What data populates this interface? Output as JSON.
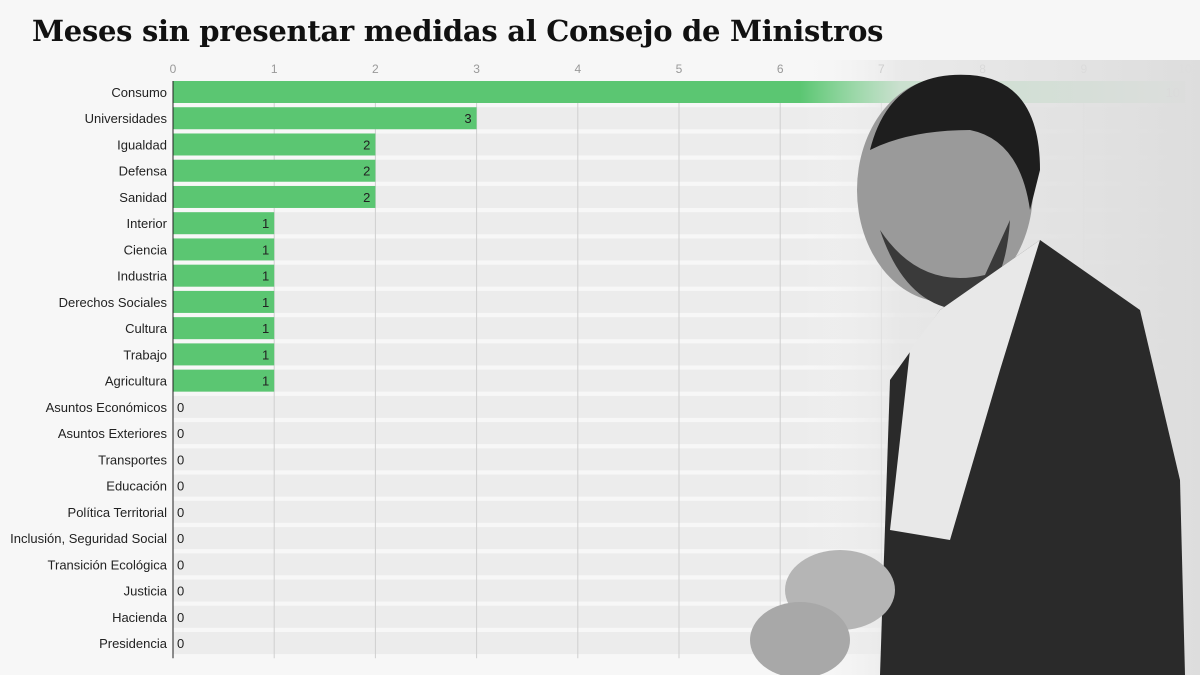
{
  "chart_data": {
    "type": "bar",
    "orientation": "horizontal",
    "title": "Meses sin presentar medidas al Consejo de Ministros",
    "categories": [
      "Consumo",
      "Universidades",
      "Igualdad",
      "Defensa",
      "Sanidad",
      "Interior",
      "Ciencia",
      "Industria",
      "Derechos Sociales",
      "Cultura",
      "Trabajo",
      "Agricultura",
      "Asuntos Económicos",
      "Asuntos Exteriores",
      "Transportes",
      "Educación",
      "Política Territorial",
      "Inclusión, Seguridad Social",
      "Transición Ecológica",
      "Justicia",
      "Hacienda",
      "Presidencia"
    ],
    "values": [
      10,
      3,
      2,
      2,
      2,
      1,
      1,
      1,
      1,
      1,
      1,
      1,
      0,
      0,
      0,
      0,
      0,
      0,
      0,
      0,
      0,
      0
    ],
    "xlim": [
      0,
      10
    ],
    "xticks": [
      0,
      1,
      2,
      3,
      4,
      5,
      6,
      7,
      8,
      9,
      10
    ],
    "xlabel": "",
    "ylabel": "",
    "grid": true,
    "bar_color": "#5bc672",
    "track_color": "#ececec"
  }
}
